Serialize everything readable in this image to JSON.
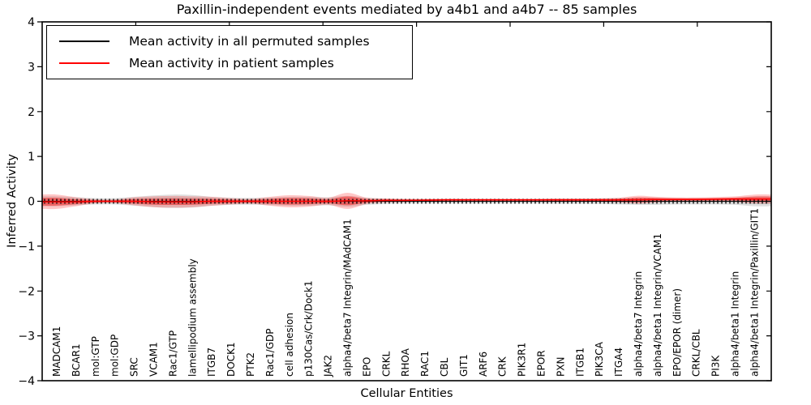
{
  "chart_data": {
    "type": "line",
    "title": "Paxillin-independent events mediated by a4b1 and a4b7 -- 85 samples",
    "xlabel": "Cellular Entities",
    "ylabel": "Inferred Activity",
    "ylim": [
      -4,
      4
    ],
    "yticks": [
      -4,
      -3,
      -2,
      -1,
      0,
      1,
      2,
      3,
      4
    ],
    "ytick_labels": [
      "−4",
      "−3",
      "−2",
      "−1",
      "0",
      "1",
      "2",
      "3",
      "4"
    ],
    "grid": false,
    "legend": {
      "position": "upper left",
      "items": [
        {
          "label": "Mean activity in all permuted samples",
          "color": "#000000"
        },
        {
          "label": "Mean activity in patient samples",
          "color": "#ff0000"
        }
      ]
    },
    "categories": [
      "MADCAM1",
      "BCAR1",
      "mol:GTP",
      "mol:GDP",
      "SRC",
      "VCAM1",
      "Rac1/GTP",
      "lamellipodium assembly",
      "ITGB7",
      "DOCK1",
      "PTK2",
      "Rac1/GDP",
      "cell adhesion",
      "p130Cas/Crk/Dock1",
      "JAK2",
      "alpha4/beta7 Integrin/MAdCAM1",
      "EPO",
      "CRKL",
      "RHOA",
      "RAC1",
      "CBL",
      "GIT1",
      "ARF6",
      "CRK",
      "PIK3R1",
      "EPOR",
      "PXN",
      "ITGB1",
      "PIK3CA",
      "ITGA4",
      "alpha4/beta7 Integrin",
      "alpha4/beta1 Integrin/VCAM1",
      "EPO/EPOR (dimer)",
      "CRKL/CBL",
      "PI3K",
      "alpha4/beta1 Integrin",
      "alpha4/beta1 Integrin/Paxillin/GIT1"
    ],
    "series": [
      {
        "name": "Mean activity in all permuted samples",
        "color": "#000000",
        "band_color": "#808080",
        "values": [
          0,
          0,
          0,
          0,
          0,
          0,
          0,
          0,
          0,
          0,
          0,
          0,
          0,
          0,
          0,
          0,
          0,
          0,
          0,
          0,
          0,
          0,
          0,
          0,
          0,
          0,
          0,
          0,
          0,
          0,
          0,
          0,
          0,
          0,
          0,
          0,
          0
        ],
        "band_halfwidth": [
          0.11,
          0.09,
          0.07,
          0.07,
          0.1,
          0.13,
          0.15,
          0.14,
          0.1,
          0.08,
          0.075,
          0.085,
          0.1,
          0.1,
          0.09,
          0.12,
          0.08,
          0.06,
          0.05,
          0.05,
          0.05,
          0.05,
          0.05,
          0.05,
          0.05,
          0.05,
          0.055,
          0.055,
          0.06,
          0.07,
          0.08,
          0.08,
          0.07,
          0.07,
          0.07,
          0.08,
          0.11
        ]
      },
      {
        "name": "Mean activity in patient samples",
        "color": "#ff0000",
        "band_color": "#ff0000",
        "values": [
          -0.01,
          -0.01,
          0,
          0,
          0,
          -0.01,
          -0.01,
          -0.01,
          0,
          0,
          0,
          0,
          0,
          0,
          0,
          0.01,
          0.01,
          0.02,
          0.02,
          0.025,
          0.03,
          0.03,
          0.03,
          0.03,
          0.03,
          0.03,
          0.03,
          0.03,
          0.03,
          0.03,
          0.035,
          0.04,
          0.04,
          0.04,
          0.045,
          0.05,
          0.05
        ],
        "band_halfwidth": [
          0.16,
          0.1,
          0.045,
          0.04,
          0.09,
          0.12,
          0.13,
          0.12,
          0.1,
          0.07,
          0.055,
          0.1,
          0.135,
          0.12,
          0.08,
          0.18,
          0.07,
          0.045,
          0.035,
          0.03,
          0.03,
          0.03,
          0.03,
          0.03,
          0.03,
          0.03,
          0.035,
          0.035,
          0.04,
          0.05,
          0.09,
          0.06,
          0.045,
          0.045,
          0.05,
          0.06,
          0.1
        ]
      }
    ]
  }
}
